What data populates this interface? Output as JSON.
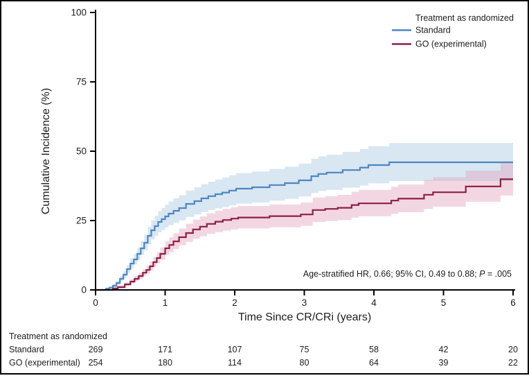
{
  "figure": {
    "ylabel": "Cumulative Incidence (%)",
    "xlabel": "Time Since CR/CRi (years)",
    "legend": {
      "title": "Treatment as randomized",
      "items": [
        {
          "label": "Standard",
          "color": "#4c86c0"
        },
        {
          "label": "GO (experimental)",
          "color": "#8e1e42"
        }
      ]
    },
    "annotation": {
      "text_before": "Age-stratified HR, 0.66; 95% CI, 0.49 to 0.88; ",
      "p_symbol": "P",
      "p_rest": " = .005"
    }
  },
  "chart_data": {
    "type": "line",
    "subtype": "cumulative-incidence-step-curves",
    "title": "",
    "xlabel": "Time Since CR/CRi (years)",
    "ylabel": "Cumulative Incidence (%)",
    "xlim": [
      0,
      6
    ],
    "ylim": [
      0,
      100
    ],
    "xticks": [
      0,
      1,
      2,
      3,
      4,
      5,
      6
    ],
    "yticks": [
      0,
      25,
      50,
      75,
      100
    ],
    "grid": false,
    "legend_position": "top-right",
    "annotation": "Age-stratified HR, 0.66; 95% CI, 0.49 to 0.88; P = .005",
    "series": [
      {
        "name": "Standard",
        "color": "#4c86c0",
        "band_color": "#a9c9e2",
        "end_value": 46,
        "steps": [
          [
            0.15,
            0.4
          ],
          [
            0.2,
            0.8
          ],
          [
            0.25,
            1.5
          ],
          [
            0.3,
            2.5
          ],
          [
            0.35,
            4
          ],
          [
            0.4,
            5.5
          ],
          [
            0.45,
            7.5
          ],
          [
            0.5,
            9.5
          ],
          [
            0.55,
            11
          ],
          [
            0.6,
            13
          ],
          [
            0.65,
            15
          ],
          [
            0.7,
            17
          ],
          [
            0.75,
            19.5
          ],
          [
            0.8,
            21.5
          ],
          [
            0.85,
            23
          ],
          [
            0.9,
            24.5
          ],
          [
            0.95,
            25.5
          ],
          [
            1.0,
            26.5
          ],
          [
            1.05,
            27.5
          ],
          [
            1.12,
            28.5
          ],
          [
            1.2,
            29.5
          ],
          [
            1.3,
            31
          ],
          [
            1.42,
            32
          ],
          [
            1.52,
            33
          ],
          [
            1.62,
            33.8
          ],
          [
            1.72,
            34.5
          ],
          [
            1.82,
            35.1
          ],
          [
            1.92,
            35.8
          ],
          [
            2.02,
            36.5
          ],
          [
            2.25,
            37
          ],
          [
            2.5,
            37.8
          ],
          [
            2.72,
            38.5
          ],
          [
            2.92,
            39.5
          ],
          [
            3.1,
            41
          ],
          [
            3.2,
            41.8
          ],
          [
            3.32,
            42.3
          ],
          [
            3.55,
            43.2
          ],
          [
            3.8,
            44.1
          ],
          [
            3.92,
            45
          ],
          [
            4.22,
            46
          ]
        ]
      },
      {
        "name": "GO (experimental)",
        "color": "#8e1e42",
        "band_color": "#e2a7c0",
        "end_value": 39.9,
        "steps": [
          [
            0.25,
            0.5
          ],
          [
            0.32,
            1
          ],
          [
            0.42,
            2
          ],
          [
            0.5,
            3
          ],
          [
            0.56,
            4
          ],
          [
            0.62,
            5
          ],
          [
            0.68,
            6.2
          ],
          [
            0.73,
            7.2
          ],
          [
            0.78,
            8.5
          ],
          [
            0.83,
            10
          ],
          [
            0.88,
            11.5
          ],
          [
            0.93,
            13
          ],
          [
            1.0,
            15
          ],
          [
            1.06,
            16.2
          ],
          [
            1.12,
            17.5
          ],
          [
            1.2,
            19
          ],
          [
            1.3,
            20.5
          ],
          [
            1.4,
            21.8
          ],
          [
            1.5,
            22.8
          ],
          [
            1.6,
            23.8
          ],
          [
            1.72,
            24.6
          ],
          [
            1.83,
            25.2
          ],
          [
            1.95,
            25.7
          ],
          [
            2.05,
            26.1
          ],
          [
            2.5,
            26.6
          ],
          [
            2.95,
            27.2
          ],
          [
            3.12,
            28.8
          ],
          [
            3.3,
            29.2
          ],
          [
            3.48,
            29.6
          ],
          [
            3.68,
            30.6
          ],
          [
            3.78,
            31.2
          ],
          [
            4.25,
            32.2
          ],
          [
            4.35,
            32.9
          ],
          [
            4.72,
            34.3
          ],
          [
            4.85,
            35.2
          ],
          [
            5.32,
            37.3
          ],
          [
            5.82,
            39.9
          ]
        ]
      }
    ]
  },
  "risk_table": {
    "header": "Treatment as randomized",
    "rows": [
      {
        "label": "Standard",
        "counts": [
          "269",
          "171",
          "107",
          "75",
          "58",
          "42",
          "20"
        ]
      },
      {
        "label": "GO (experimental)",
        "counts": [
          "254",
          "180",
          "114",
          "80",
          "64",
          "39",
          "22"
        ]
      }
    ]
  }
}
